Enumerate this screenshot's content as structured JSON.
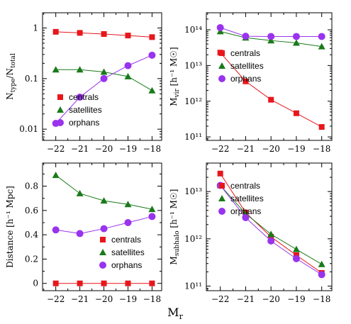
{
  "figure": {
    "xlabel": "M",
    "xlabel_sub": "r"
  },
  "colors": {
    "centrals": "#e8161b",
    "satellites": "#1a7a1a",
    "orphans": "#9933ee"
  },
  "legend": {
    "centrals": "centrals",
    "satellites": "satellites",
    "orphans": "orphans"
  },
  "chart_data": [
    {
      "type": "line",
      "ylabel": {
        "main": "N",
        "sub1": "type",
        "mid": "/N",
        "sub2": "total"
      },
      "yscale": "log",
      "ylim": [
        0.006,
        2.0
      ],
      "yticks": [
        {
          "v": 0.01,
          "label": "0.01"
        },
        {
          "v": 0.1,
          "label": "0.1"
        },
        {
          "v": 1,
          "label": "1"
        }
      ],
      "x": [
        -22,
        -21,
        -20,
        -19,
        -18
      ],
      "xlim": [
        -22.55,
        -17.6
      ],
      "series": [
        {
          "name": "centrals",
          "values": [
            0.84,
            0.8,
            0.76,
            0.71,
            0.66
          ]
        },
        {
          "name": "satellites",
          "values": [
            0.15,
            0.15,
            0.135,
            0.11,
            0.058
          ]
        },
        {
          "name": "orphans",
          "values": [
            0.013,
            0.043,
            0.1,
            0.18,
            0.29
          ]
        }
      ],
      "legend_position": "bottom-left"
    },
    {
      "type": "line",
      "ylabel": {
        "main": "M",
        "sub1": "vir",
        "mid": " [h⁻¹ M",
        "sub2": "",
        "end": "☉]"
      },
      "yscale": "log",
      "ylim": [
        80000000000.0,
        300000000000000.0
      ],
      "yticks": [
        {
          "v": 100000000000.0,
          "label": "10¹¹"
        },
        {
          "v": 1000000000000.0,
          "label": "10¹²"
        },
        {
          "v": 10000000000000.0,
          "label": "10¹³"
        },
        {
          "v": 100000000000000.0,
          "label": "10¹⁴"
        }
      ],
      "x": [
        -22,
        -21,
        -20,
        -19,
        -18
      ],
      "xlim": [
        -22.55,
        -17.6
      ],
      "series": [
        {
          "name": "centrals",
          "values": [
            23000000000000.0,
            3600000000000.0,
            1100000000000.0,
            460000000000.0,
            190000000000.0
          ]
        },
        {
          "name": "satellites",
          "values": [
            90000000000000.0,
            60000000000000.0,
            50000000000000.0,
            43000000000000.0,
            34000000000000.0
          ]
        },
        {
          "name": "orphans",
          "values": [
            115000000000000.0,
            66000000000000.0,
            65000000000000.0,
            65000000000000.0,
            65000000000000.0
          ]
        }
      ],
      "legend_position": "center-right"
    },
    {
      "type": "line",
      "ylabel": {
        "main": "Distance [h⁻¹ Mpc]"
      },
      "yscale": "linear",
      "ylim": [
        -0.06,
        0.99
      ],
      "yticks": [
        {
          "v": 0,
          "label": "0"
        },
        {
          "v": 0.2,
          "label": "0.2"
        },
        {
          "v": 0.4,
          "label": "0.4"
        },
        {
          "v": 0.6,
          "label": "0.6"
        },
        {
          "v": 0.8,
          "label": "0.8"
        }
      ],
      "x": [
        -22,
        -21,
        -20,
        -19,
        -18
      ],
      "xlim": [
        -22.55,
        -17.6
      ],
      "series": [
        {
          "name": "centrals",
          "values": [
            0,
            0,
            0,
            0,
            0
          ]
        },
        {
          "name": "satellites",
          "values": [
            0.89,
            0.74,
            0.68,
            0.65,
            0.61
          ]
        },
        {
          "name": "orphans",
          "values": [
            0.44,
            0.41,
            0.45,
            0.5,
            0.55
          ]
        }
      ],
      "legend_position": "bottom-right"
    },
    {
      "type": "line",
      "ylabel": {
        "main": "M",
        "sub1": "subhalo",
        "mid": " [h⁻¹ M",
        "sub2": "",
        "end": "☉]"
      },
      "yscale": "log",
      "ylim": [
        80000000000.0,
        40000000000000.0
      ],
      "yticks": [
        {
          "v": 100000000000.0,
          "label": "10¹¹"
        },
        {
          "v": 1000000000000.0,
          "label": "10¹²"
        },
        {
          "v": 10000000000000.0,
          "label": "10¹³"
        }
      ],
      "x": [
        -22,
        -21,
        -20,
        -19,
        -18
      ],
      "xlim": [
        -22.55,
        -17.6
      ],
      "series": [
        {
          "name": "centrals",
          "values": [
            24000000000000.0,
            3600000000000.0,
            1100000000000.0,
            450000000000.0,
            190000000000.0
          ]
        },
        {
          "name": "satellites",
          "values": [
            13500000000000.0,
            3400000000000.0,
            1250000000000.0,
            600000000000.0,
            290000000000.0
          ]
        },
        {
          "name": "orphans",
          "values": [
            13500000000000.0,
            2800000000000.0,
            900000000000.0,
            380000000000.0,
            175000000000.0
          ]
        }
      ],
      "legend_position": "top-right"
    }
  ],
  "xtick_labels": [
    "−22",
    "−21",
    "−20",
    "−19",
    "−18"
  ]
}
